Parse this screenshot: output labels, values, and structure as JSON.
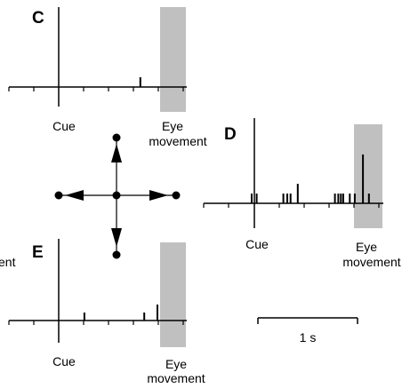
{
  "panels": {
    "c": {
      "letter": "C",
      "cue_label": "Cue",
      "eye_line1": "Eye",
      "eye_line2": "movement"
    },
    "d": {
      "letter": "D",
      "cue_label": "Cue",
      "eye_line1": "Eye",
      "eye_line2": "movement"
    },
    "e": {
      "letter": "E",
      "cue_label": "Cue",
      "eye_line1": "Eye",
      "eye_line2": "movement"
    }
  },
  "clipped_text": "ent",
  "scale_bar": {
    "label": "1 s"
  },
  "colors": {
    "shade": "#c0c0c0",
    "ink": "#000000"
  },
  "chart_data": [
    {
      "type": "bar",
      "panel": "C",
      "x": [
        0.82
      ],
      "values": [
        1
      ]
    },
    {
      "type": "bar",
      "panel": "D",
      "x": [
        -0.08,
        0.07,
        0.88,
        1.0,
        1.1,
        1.32,
        2.45,
        2.55,
        2.63,
        2.7,
        2.9,
        3.05,
        3.3,
        3.48
      ],
      "values": [
        1,
        1,
        1,
        1,
        1,
        2,
        1,
        1,
        1,
        1,
        1,
        1,
        5,
        1
      ]
    },
    {
      "type": "bar",
      "panel": "E",
      "x": [
        0.78,
        2.6,
        3.0
      ],
      "values": [
        1,
        1,
        2
      ]
    }
  ]
}
